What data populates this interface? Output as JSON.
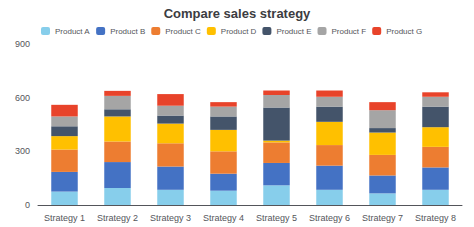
{
  "chart_data": {
    "type": "bar",
    "title": "Compare sales strategy",
    "categories": [
      "Strategy 1",
      "Strategy 2",
      "Strategy 3",
      "Strategy 4",
      "Strategy 5",
      "Strategy 6",
      "Strategy 7",
      "Strategy 8"
    ],
    "series": [
      {
        "name": "Product A",
        "color": "#87CEEB",
        "values": [
          75,
          95,
          85,
          80,
          110,
          85,
          65,
          85
        ]
      },
      {
        "name": "Product B",
        "color": "#4472C4",
        "values": [
          110,
          145,
          130,
          95,
          125,
          135,
          100,
          125
        ]
      },
      {
        "name": "Product C",
        "color": "#ED7D31",
        "values": [
          125,
          115,
          130,
          125,
          115,
          115,
          115,
          115
        ]
      },
      {
        "name": "Product D",
        "color": "#FFC000",
        "values": [
          75,
          140,
          110,
          120,
          10,
          130,
          125,
          110
        ]
      },
      {
        "name": "Product E",
        "color": "#44546A",
        "values": [
          55,
          40,
          45,
          75,
          185,
          85,
          25,
          115
        ]
      },
      {
        "name": "Product F",
        "color": "#A5A5A5",
        "values": [
          55,
          75,
          55,
          55,
          70,
          55,
          100,
          55
        ]
      },
      {
        "name": "Product G",
        "color": "#E8432A",
        "values": [
          65,
          28,
          65,
          25,
          25,
          35,
          45,
          25
        ]
      }
    ],
    "stacked": true,
    "ylim": [
      0,
      900
    ],
    "yticks": [
      0,
      300,
      600,
      900
    ],
    "grid": false,
    "legend": "upper left"
  }
}
